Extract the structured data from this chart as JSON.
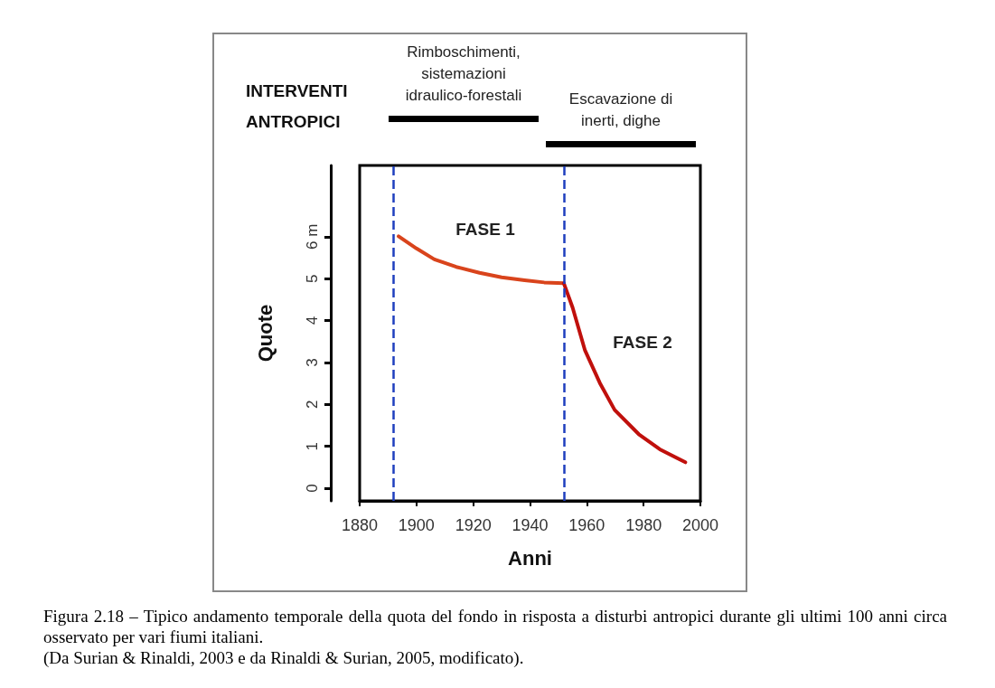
{
  "chart_data": {
    "type": "line",
    "title": "INTERVENTI ANTROPICI",
    "xlabel": "Anni",
    "ylabel": "Quote",
    "xlim": [
      1880,
      2000
    ],
    "xticks": [
      1880,
      1900,
      1920,
      1940,
      1960,
      1980,
      2000
    ],
    "ylim": [
      -0.3,
      7.7
    ],
    "yticks": [
      0,
      1,
      2,
      3,
      4,
      5,
      {
        "value": 6,
        "label": "6 m"
      }
    ],
    "series": [
      {
        "color": "#d9441c",
        "x": [
          1893.7,
          1900,
          1906.3,
          1914,
          1922.2,
          1930,
          1938.1,
          1945,
          1951.9
        ],
        "values": [
          6.01,
          5.72,
          5.46,
          5.28,
          5.14,
          5.03,
          4.96,
          4.91,
          4.89
        ]
      },
      {
        "color": "#c0100c",
        "x": [
          1951.9,
          1955,
          1959.3,
          1964.6,
          1969.8,
          1978.3,
          1985.7,
          1994.7
        ],
        "values": [
          4.89,
          4.31,
          3.3,
          2.51,
          1.87,
          1.29,
          0.93,
          0.62
        ]
      }
    ],
    "marker": "none",
    "line_style": "solid",
    "grid": false,
    "ref_lines": [
      {
        "axis": "x",
        "value": 1892,
        "color": "#1f3fbf",
        "line_style": "dashed"
      },
      {
        "axis": "x",
        "value": 1952,
        "color": "#1f3fbf",
        "line_style": "dashed"
      }
    ],
    "annotations": [
      "Rimboschimenti, sistemazioni idraulico-forestali",
      "Escavazione di inerti, dighe",
      "FASE 1",
      "FASE 2",
      "Figura 2.18 – Tipico andamento temporale della quota del fondo in risposta a disturbi antropici durante gli ultimi 100 anni circa osservato per vari fiumi italiani.",
      "(Da Surian & Rinaldi, 2003 e da Rinaldi & Surian, 2005, modificato)."
    ]
  }
}
